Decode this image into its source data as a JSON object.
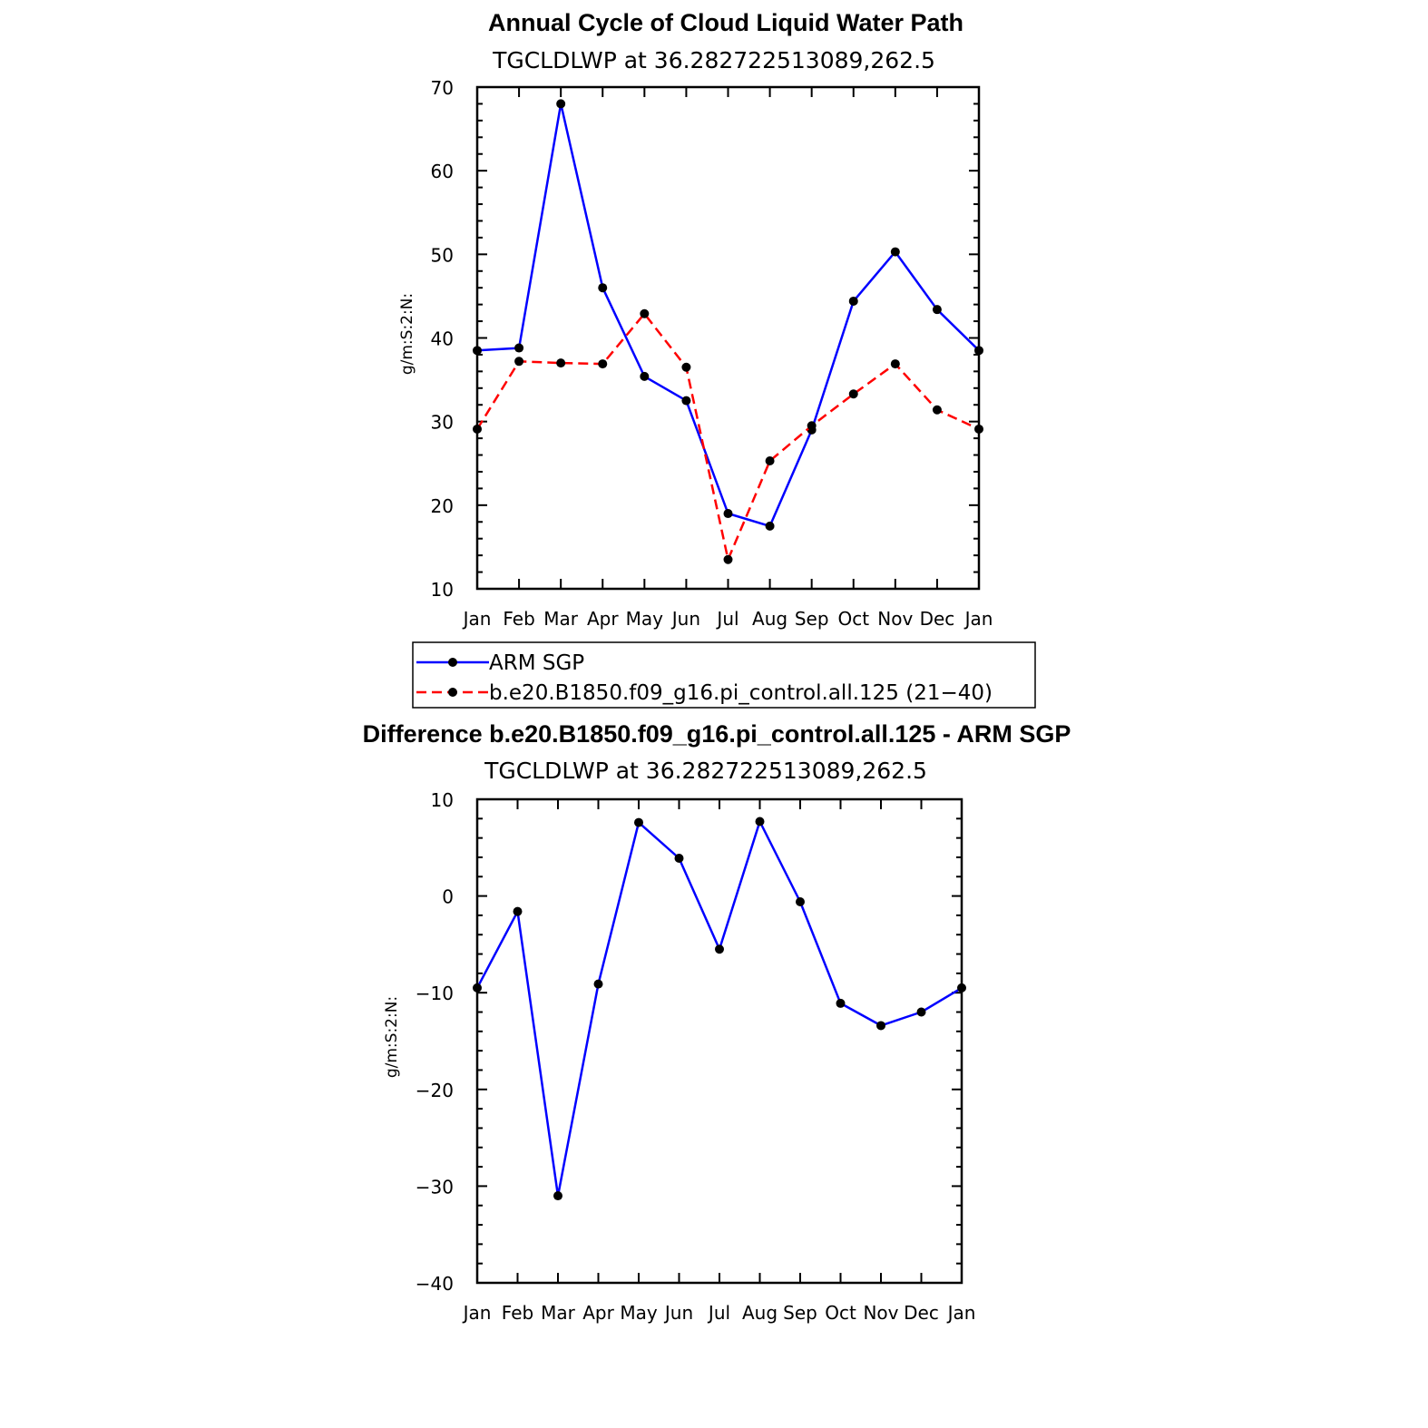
{
  "chart_data": [
    {
      "type": "line",
      "title": "Annual Cycle of Cloud Liquid Water Path",
      "subtitle": "TGCLDLWP  at  36.282722513089,262.5",
      "ylabel": "g/m:S:2:N:",
      "xlabel": "",
      "categories": [
        "Jan",
        "Feb",
        "Mar",
        "Apr",
        "May",
        "Jun",
        "Jul",
        "Aug",
        "Sep",
        "Oct",
        "Nov",
        "Dec",
        "Jan"
      ],
      "ylim": [
        10,
        70
      ],
      "yticks": [
        10,
        20,
        30,
        40,
        50,
        60,
        70
      ],
      "grid": false,
      "legend_position": "below",
      "series": [
        {
          "name": "ARM  SGP",
          "color": "#0000ff",
          "dash": "solid",
          "values": [
            38.5,
            38.8,
            68.0,
            46.0,
            35.4,
            32.5,
            19.0,
            17.5,
            29.0,
            44.4,
            50.3,
            43.4,
            38.5
          ]
        },
        {
          "name": "b.e20.B1850.f09_g16.pi_control.all.125  (21−40)",
          "color": "#ff0000",
          "dash": "dashed",
          "values": [
            29.1,
            37.2,
            37.0,
            36.9,
            42.9,
            36.5,
            13.5,
            25.3,
            29.5,
            33.3,
            36.9,
            31.4,
            29.1
          ]
        }
      ]
    },
    {
      "type": "line",
      "title": "Difference b.e20.B1850.f09_g16.pi_control.all.125 - ARM SGP",
      "subtitle": "TGCLDLWP  at  36.282722513089,262.5",
      "ylabel": "g/m:S:2:N:",
      "xlabel": "",
      "categories": [
        "Jan",
        "Feb",
        "Mar",
        "Apr",
        "May",
        "Jun",
        "Jul",
        "Aug",
        "Sep",
        "Oct",
        "Nov",
        "Dec",
        "Jan"
      ],
      "ylim": [
        -40,
        10
      ],
      "yticks": [
        -40,
        -30,
        -20,
        -10,
        0,
        10
      ],
      "ytick_labels": [
        "−40",
        "−30",
        "−20",
        "−10",
        "0",
        "10"
      ],
      "grid": false,
      "series": [
        {
          "color": "#0000ff",
          "dash": "solid",
          "values": [
            -9.5,
            -1.6,
            -31.0,
            -9.1,
            7.6,
            3.9,
            -5.5,
            7.7,
            -0.6,
            -11.1,
            -13.4,
            -12.0,
            -9.5
          ]
        }
      ]
    }
  ]
}
